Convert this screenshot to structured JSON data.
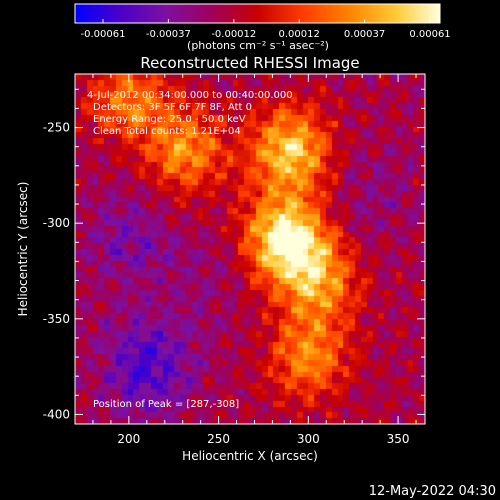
{
  "colorbar": {
    "tick_labels": [
      "-0.00061",
      "-0.00037",
      "-0.00012",
      "0.00012",
      "0.00037",
      "0.00061"
    ],
    "units_label": "(photons cm⁻² s⁻¹ asec⁻²)",
    "colors": [
      "#0000ff",
      "#4b00c8",
      "#7d10a0",
      "#a0005a",
      "#c80000",
      "#ff3c00",
      "#ff8200",
      "#ffc832",
      "#ffffdc"
    ]
  },
  "chart_data": {
    "type": "heatmap",
    "title": "Reconstructed RHESSI Image",
    "xlabel": "Heliocentric X (arcsec)",
    "ylabel": "Heliocentric Y (arcsec)",
    "xlim": [
      170,
      365
    ],
    "ylim": [
      -405,
      -222
    ],
    "xticks": [
      200,
      250,
      300,
      350
    ],
    "yticks": [
      -400,
      -350,
      -300,
      -250
    ],
    "value_range": [
      -0.00061,
      0.00061
    ],
    "annotations": [
      "4-Jul-2012 00:34:00.000 to 00:40:00.000",
      "Detectors: 3F 5F 6F 7F 8F, Att 0",
      "Energy Range: 25.0 - 50.0 keV",
      "Clean     Total counts: 1.21E+04"
    ],
    "peak_label": "Position of Peak = [287,-308]",
    "peak_position": [
      287,
      -308
    ],
    "bright_regions": [
      {
        "x": 287,
        "y": -308,
        "value": 0.00061
      },
      {
        "x": 290,
        "y": -262,
        "value": 0.00048
      },
      {
        "x": 305,
        "y": -330,
        "value": 0.00035
      },
      {
        "x": 300,
        "y": -370,
        "value": 0.0003
      },
      {
        "x": 232,
        "y": -262,
        "value": 0.00032
      },
      {
        "x": 200,
        "y": -235,
        "value": 0.00026
      }
    ],
    "dark_regions": [
      {
        "x": 210,
        "y": -375,
        "value": -0.00045
      },
      {
        "x": 200,
        "y": -310,
        "value": -0.0003
      },
      {
        "x": 335,
        "y": -285,
        "value": -0.00022
      },
      {
        "x": 245,
        "y": -330,
        "value": -0.0002
      }
    ]
  },
  "footer": {
    "timestamp": "12-May-2022 04:30"
  }
}
